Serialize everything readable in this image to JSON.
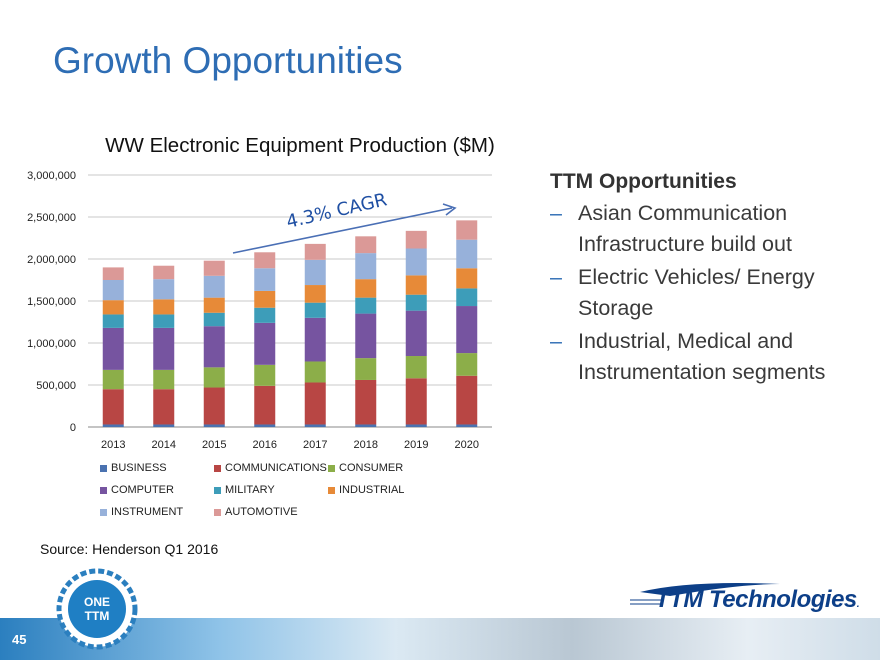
{
  "page": {
    "title": "Growth Opportunities",
    "page_number": "45",
    "source": "Source:  Henderson Q1 2016"
  },
  "opportunities": {
    "heading": "TTM Opportunities",
    "items": [
      "Asian Communication Infrastructure build out",
      "Electric Vehicles/ Energy Storage",
      "Industrial, Medical and Instrumentation segments"
    ],
    "bullet": "–"
  },
  "logos": {
    "one_ttm": "ONE TTM",
    "company": "TTM Technologies."
  },
  "colors": {
    "title": "#2e6db4",
    "BUSINESS": "#4a72b0",
    "COMMUNICATIONS": "#b84644",
    "CONSUMER": "#8cae49",
    "COMPUTER": "#7654a0",
    "MILITARY": "#3d9db9",
    "INDUSTRIAL": "#e78a38",
    "INSTRUMENT": "#97b1da",
    "AUTOMOTIVE": "#db9997"
  },
  "chart_data": {
    "type": "bar",
    "stacked": true,
    "title": "WW Electronic Equipment Production ($M)",
    "annotation": "4.3% CAGR",
    "categories": [
      "2013",
      "2014",
      "2015",
      "2016",
      "2017",
      "2018",
      "2019",
      "2020"
    ],
    "ylim": [
      0,
      3000000
    ],
    "yticks": [
      0,
      500000,
      1000000,
      1500000,
      2000000,
      2500000,
      3000000
    ],
    "ytick_labels": [
      "0",
      "500,000",
      "1,000,000",
      "1,500,000",
      "2,000,000",
      "2,500,000",
      "3,000,000"
    ],
    "grid": true,
    "legend_position": "bottom",
    "series": [
      {
        "name": "BUSINESS",
        "values": [
          30000,
          30000,
          30000,
          30000,
          30000,
          30000,
          30000,
          30000
        ]
      },
      {
        "name": "COMMUNICATIONS",
        "values": [
          420000,
          420000,
          440000,
          460000,
          500000,
          530000,
          550000,
          580000
        ]
      },
      {
        "name": "CONSUMER",
        "values": [
          230000,
          230000,
          240000,
          250000,
          250000,
          260000,
          265000,
          270000
        ]
      },
      {
        "name": "COMPUTER",
        "values": [
          500000,
          500000,
          490000,
          500000,
          520000,
          530000,
          540000,
          560000
        ]
      },
      {
        "name": "MILITARY",
        "values": [
          160000,
          160000,
          160000,
          180000,
          180000,
          190000,
          190000,
          210000
        ]
      },
      {
        "name": "INDUSTRIAL",
        "values": [
          170000,
          180000,
          180000,
          200000,
          210000,
          220000,
          230000,
          240000
        ]
      },
      {
        "name": "INSTRUMENT",
        "values": [
          240000,
          240000,
          260000,
          270000,
          300000,
          310000,
          320000,
          340000
        ]
      },
      {
        "name": "AUTOMOTIVE",
        "values": [
          150000,
          160000,
          180000,
          190000,
          190000,
          200000,
          210000,
          230000
        ]
      }
    ]
  }
}
